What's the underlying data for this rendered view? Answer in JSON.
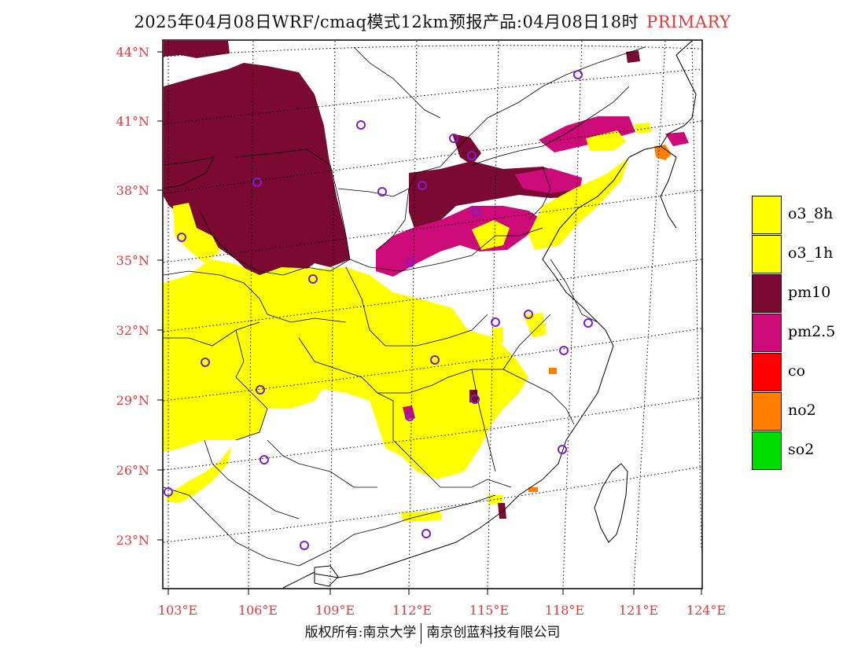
{
  "title": "2025年04月08日WRF/cmaq模式12km预报产品:04月08日18时",
  "title_tag": "PRIMARY",
  "lat_labels": [
    "44°N",
    "41°N",
    "38°N",
    "35°N",
    "32°N",
    "29°N",
    "26°N",
    "23°N"
  ],
  "lon_labels": [
    "103°E",
    "106°E",
    "109°E",
    "112°E",
    "115°E",
    "118°E",
    "121°E",
    "124°E"
  ],
  "legend": [
    {
      "label": "o3_8h",
      "color": "#ffff00"
    },
    {
      "label": "o3_1h",
      "color": "#ffff00"
    },
    {
      "label": "pm10",
      "color": "#7a0a32"
    },
    {
      "label": "pm2.5",
      "color": "#cc0a78"
    },
    {
      "label": "co",
      "color": "#ff0000"
    },
    {
      "label": "no2",
      "color": "#ff7f00"
    },
    {
      "label": "so2",
      "color": "#00dd00"
    }
  ],
  "footer_left": "版权所有:南京大学",
  "footer_right": "南京创蓝科技有限公司",
  "colors": {
    "axis_label": "#e03a3a",
    "station_marker": "#7a1fd0"
  }
}
